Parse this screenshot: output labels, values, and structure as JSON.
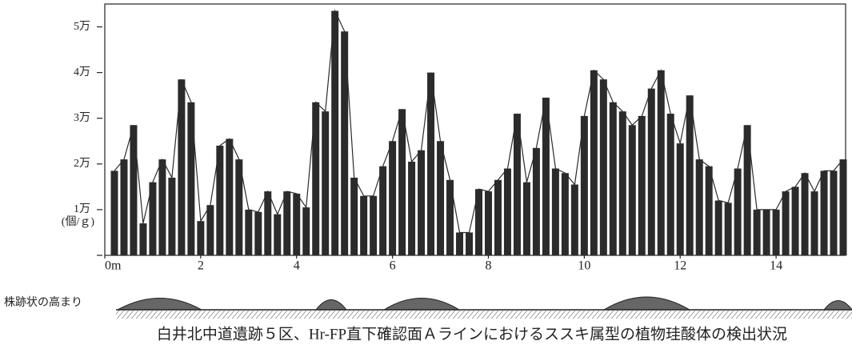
{
  "chart_data": {
    "type": "bar",
    "line": true,
    "color": "#2b2b2b",
    "line_color": "#2b2b2b",
    "x": [
      0.2,
      0.4,
      0.6,
      0.8,
      1,
      1.2,
      1.4,
      1.6,
      1.8,
      2,
      2.2,
      2.4,
      2.6,
      2.8,
      3,
      3.2,
      3.4,
      3.6,
      3.8,
      4,
      4.2,
      4.4,
      4.6,
      4.8,
      5,
      5.2,
      5.4,
      5.6,
      5.8,
      6,
      6.2,
      6.4,
      6.6,
      6.8,
      7,
      7.2,
      7.4,
      7.6,
      7.8,
      8,
      8.2,
      8.4,
      8.6,
      8.8,
      9,
      9.2,
      9.4,
      9.6,
      9.8,
      10,
      10.2,
      10.4,
      10.6,
      10.8,
      11,
      11.2,
      11.4,
      11.6,
      11.8,
      12,
      12.2,
      12.4,
      12.6,
      12.8,
      13,
      13.2,
      13.4,
      13.6,
      13.8,
      14,
      14.2,
      14.4,
      14.6,
      14.8,
      15,
      15.2,
      15.4
    ],
    "values": [
      18500,
      21000,
      28500,
      7000,
      16000,
      21000,
      17000,
      38500,
      33500,
      7500,
      11000,
      24000,
      25500,
      21000,
      10000,
      9500,
      14000,
      9000,
      14000,
      13500,
      10500,
      33500,
      31500,
      53500,
      49000,
      17000,
      13000,
      13000,
      19500,
      25000,
      32000,
      20500,
      23000,
      40000,
      25000,
      16500,
      5000,
      5000,
      14500,
      14000,
      16500,
      19000,
      31000,
      16000,
      23500,
      34500,
      19000,
      18000,
      15500,
      30500,
      40500,
      38500,
      33500,
      31500,
      28500,
      30500,
      36500,
      40500,
      31000,
      24500,
      35000,
      21000,
      19500,
      12000,
      11500,
      19000,
      28500,
      10000,
      10000,
      10000,
      14000,
      15000,
      18000,
      14000,
      18500,
      18500,
      21000
    ],
    "xlim": [
      0,
      15.45
    ],
    "xticks": [
      {
        "value": 0,
        "label": "0m"
      },
      2,
      4,
      6,
      8,
      10,
      12,
      14
    ],
    "ylim": [
      0,
      55000
    ],
    "yticks": [
      {
        "value": 10000,
        "label": "1万"
      },
      {
        "value": 20000,
        "label": "2万"
      },
      {
        "value": 30000,
        "label": "3万"
      },
      {
        "value": 40000,
        "label": "4万"
      },
      {
        "value": 50000,
        "label": "5万"
      }
    ],
    "y_unit": "(個/ｇ)",
    "feature_label": "株跡状の高まり",
    "caption": "白井北中道遺跡５区、Hr-FP直下確認面Ａラインにおけるススキ属型の植物珪酸体の検出状況"
  }
}
